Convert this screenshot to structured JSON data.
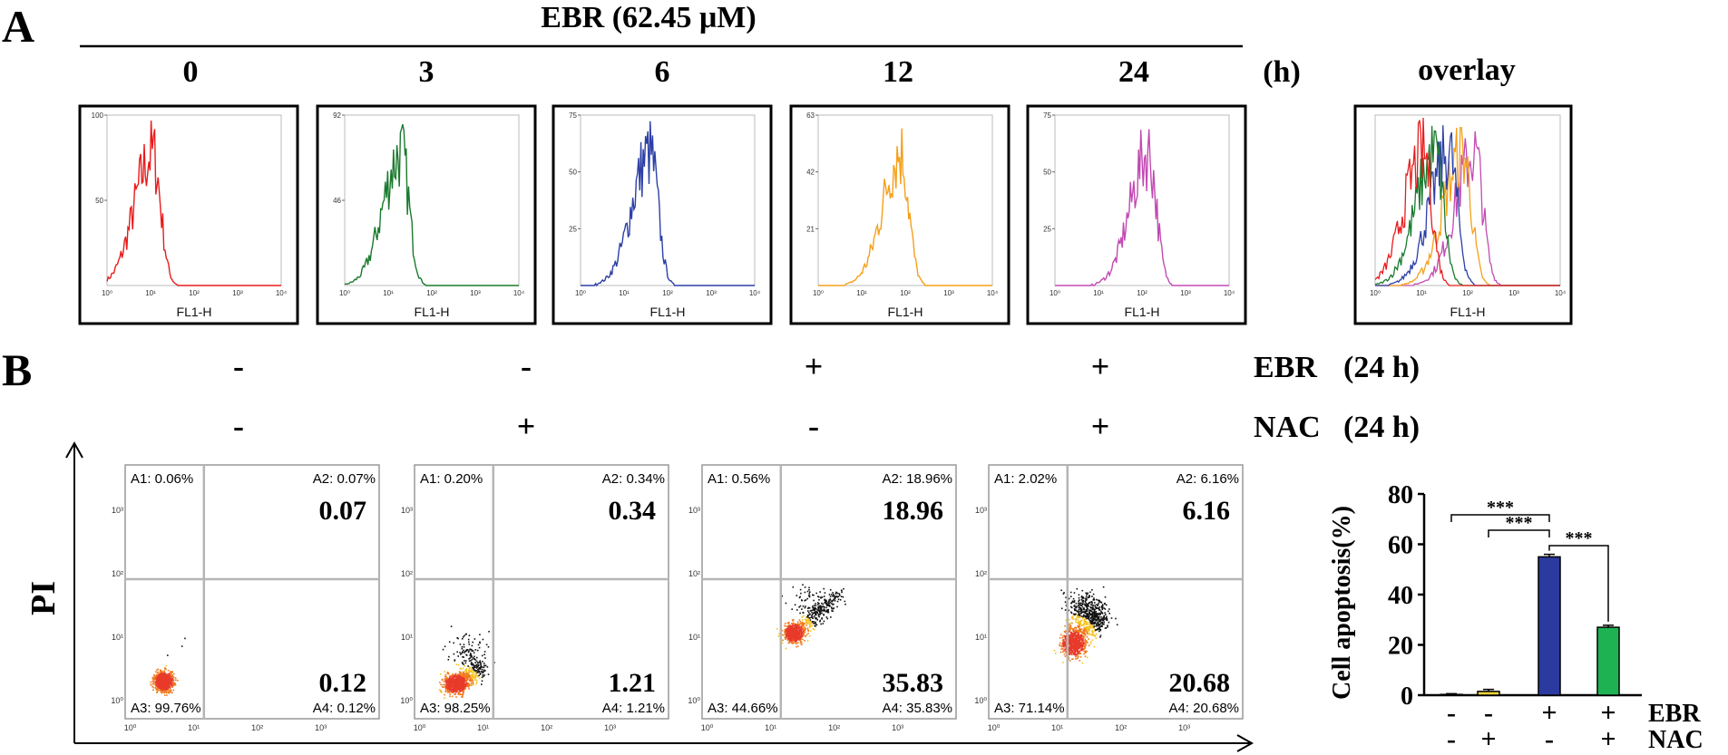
{
  "panel_a": {
    "letter": "A",
    "treatment": "EBR (62.45 μM)",
    "time_unit": "(h)",
    "overlay_label": "overlay",
    "x_axis_label": "FL1-H",
    "x_ticks": [
      "10⁰",
      "10¹",
      "10²",
      "10³",
      "10⁴"
    ],
    "histograms": [
      {
        "time": "0",
        "color": "#e81c1c",
        "peak_count": 100,
        "y_ticks": [
          "100",
          "50"
        ],
        "peak_log": 1.05
      },
      {
        "time": "3",
        "color": "#1a7a2e",
        "peak_count": 92,
        "y_ticks": [
          "92",
          "46"
        ],
        "peak_log": 1.3
      },
      {
        "time": "6",
        "color": "#2d3fa6",
        "peak_count": 75,
        "y_ticks": [
          "75",
          "50",
          "25"
        ],
        "peak_log": 1.6
      },
      {
        "time": "12",
        "color": "#f5a01a",
        "peak_count": 63,
        "y_ticks": [
          "63",
          "42",
          "21"
        ],
        "peak_log": 1.9
      },
      {
        "time": "24",
        "color": "#c24ab3",
        "peak_count": 75,
        "y_ticks": [
          "75",
          "50",
          "25"
        ],
        "peak_log": 2.15
      }
    ]
  },
  "panel_b": {
    "letter": "B",
    "y_axis_label": "PI",
    "ebr_label": "EBR",
    "nac_label": "NAC",
    "duration": "(24 h)",
    "x_ticks": [
      "10⁰",
      "10¹",
      "10²",
      "10³"
    ],
    "y_ticks": [
      "10⁰",
      "10¹",
      "10²",
      "10³"
    ],
    "plots": [
      {
        "ebr": "-",
        "nac": "-",
        "A1": "A1: 0.06%",
        "A2": "A2: 0.07%",
        "A3": "A3: 99.76%",
        "A4": "A4: 0.12%",
        "upper_value": "0.07",
        "lower_value": "0.12"
      },
      {
        "ebr": "-",
        "nac": "+",
        "A1": "A1: 0.20%",
        "A2": "A2: 0.34%",
        "A3": "A3: 98.25%",
        "A4": "A4: 1.21%",
        "upper_value": "0.34",
        "lower_value": "1.21"
      },
      {
        "ebr": "+",
        "nac": "-",
        "A1": "A1: 0.56%",
        "A2": "A2: 18.96%",
        "A3": "A3: 44.66%",
        "A4": "A4: 35.83%",
        "upper_value": "18.96",
        "lower_value": "35.83"
      },
      {
        "ebr": "+",
        "nac": "+",
        "A1": "A1: 2.02%",
        "A2": "A2: 6.16%",
        "A3": "A3: 71.14%",
        "A4": "A4: 20.68%",
        "upper_value": "6.16",
        "lower_value": "20.68"
      }
    ]
  },
  "chart_data": {
    "type": "bar",
    "ylabel": "Cell apoptosis(%)",
    "ylim": [
      0,
      80
    ],
    "y_ticks": [
      "0",
      "20",
      "40",
      "60",
      "80"
    ],
    "categories": [
      "-/-",
      "-/+",
      "+/-",
      "+/+"
    ],
    "values": [
      0.3,
      1.5,
      55,
      27
    ],
    "errors": [
      0.3,
      0.8,
      1.0,
      0.8
    ],
    "colors": [
      "#8c8c8c",
      "#e8d23a",
      "#2b3a9e",
      "#1fb253"
    ],
    "row_labels": [
      "EBR",
      "NAC"
    ],
    "ebr_signs": [
      "-",
      "-",
      "+",
      "+"
    ],
    "nac_signs": [
      "-",
      "+",
      "-",
      "+"
    ],
    "significance": [
      {
        "from": 0,
        "to": 2,
        "label": "***"
      },
      {
        "from": 1,
        "to": 2,
        "label": "***"
      },
      {
        "from": 2,
        "to": 3,
        "label": "***"
      }
    ]
  }
}
